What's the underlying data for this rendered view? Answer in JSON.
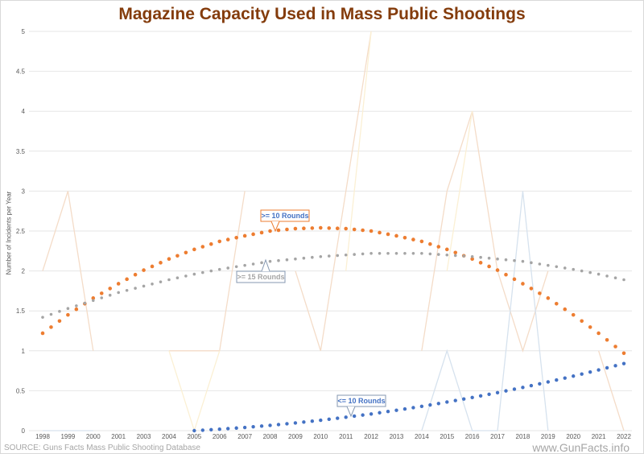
{
  "chart_data": {
    "type": "line",
    "title": "Magazine Capacity Used in Mass Public Shootings",
    "ylabel": "Number of Incidents per Year",
    "xlabel": "",
    "ylim": [
      0,
      5
    ],
    "yticks": [
      "0",
      "0.5",
      "1",
      "1.5",
      "2",
      "2.5",
      "3",
      "3.5",
      "4",
      "4.5",
      "5"
    ],
    "grid": true,
    "categories": [
      "1998",
      "1999",
      "2000",
      "2001",
      "2003",
      "2004",
      "2005",
      "2006",
      "2007",
      "2008",
      "2009",
      "2010",
      "2011",
      "2012",
      "2013",
      "2014",
      "2015",
      "2016",
      "2017",
      "2018",
      "2019",
      "2020",
      "2021",
      "2022"
    ],
    "raw_series": [
      {
        "color": "#f4dcc8",
        "values": [
          2,
          3,
          1,
          null,
          null,
          1,
          1,
          1,
          3,
          null,
          2,
          1,
          3,
          5,
          null,
          1,
          3,
          4,
          2,
          1,
          2,
          null,
          1,
          0
        ]
      },
      {
        "color": "#fbf0d4",
        "values": [
          null,
          null,
          null,
          null,
          null,
          1,
          0,
          1,
          null,
          null,
          null,
          null,
          2,
          5,
          null,
          null,
          2,
          4,
          null,
          null,
          null,
          null,
          null,
          null
        ]
      },
      {
        "color": "#d6e2ee",
        "values": [
          0,
          0,
          0,
          null,
          null,
          null,
          null,
          null,
          null,
          null,
          null,
          null,
          null,
          null,
          null,
          0,
          1,
          0,
          0,
          3,
          0,
          null,
          null,
          null
        ]
      }
    ],
    "trendlines": [
      {
        "name": ">= 10 Rounds",
        "color": "#ed7d31",
        "values": [
          1.22,
          1.45,
          1.66,
          1.84,
          2.01,
          2.15,
          2.27,
          2.37,
          2.44,
          2.5,
          2.53,
          2.54,
          2.53,
          2.5,
          2.44,
          2.37,
          2.27,
          2.15,
          2.01,
          1.84,
          1.66,
          1.45,
          1.22,
          0.97
        ]
      },
      {
        "name": ">= 15 Rounds",
        "color": "#a5a5a5",
        "values": [
          1.42,
          1.53,
          1.63,
          1.73,
          1.81,
          1.89,
          1.96,
          2.02,
          2.07,
          2.12,
          2.15,
          2.18,
          2.2,
          2.22,
          2.22,
          2.22,
          2.2,
          2.18,
          2.15,
          2.12,
          2.07,
          2.02,
          1.96,
          1.89
        ]
      },
      {
        "name": "<= 10 Rounds",
        "color": "#4472c4",
        "values": [
          null,
          null,
          null,
          null,
          null,
          null,
          0,
          0.018,
          0.04,
          0.066,
          0.096,
          0.13,
          0.168,
          0.209,
          0.255,
          0.304,
          0.358,
          0.415,
          0.476,
          0.541,
          0.61,
          0.683,
          0.76,
          0.84
        ]
      }
    ],
    "label_colors": {
      "text": "#4472c4",
      "border_orange": "#ed7d31",
      "border_gray": "#8497b0",
      "text_gray": "#a5a5a5"
    }
  },
  "footer": {
    "source": "SOURCE: Guns Facts Mass Public Shooting Database",
    "watermark": "www.GunFacts.info"
  }
}
